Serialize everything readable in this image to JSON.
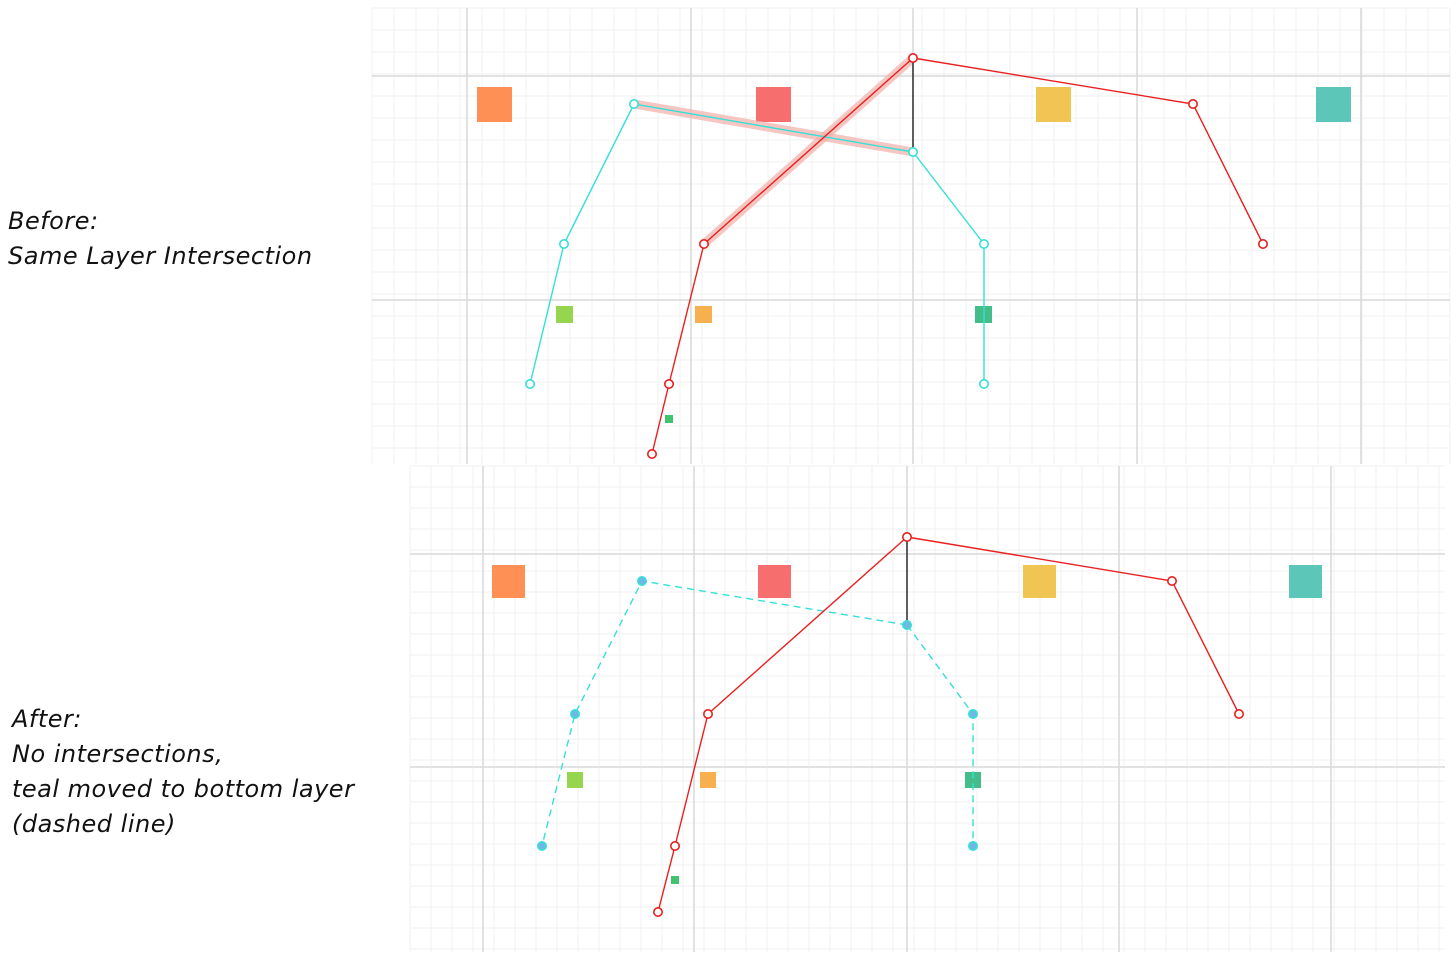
{
  "captions": {
    "before": [
      "Before:",
      "Same Layer Intersection"
    ],
    "after": [
      "After:",
      "No intersections,",
      "teal moved to bottom layer",
      "(dashed line)"
    ]
  },
  "colors": {
    "red_route": "#e8201f",
    "teal_route": "#35e0d6",
    "highlight": "#f3b3ae",
    "connector": "#111111",
    "component_orange": "#fe8f55",
    "component_red": "#f66e6e",
    "component_yellow": "#f0c553",
    "component_teal": "#5cc7b8",
    "pad_lime": "#96d64f",
    "pad_amber": "#f6b04e",
    "pad_green": "#44bd8a",
    "pad_small": "#41c36f",
    "grid_major": "#d9d9d9",
    "grid_minor": "#f1f1f1",
    "via_fill": "#6fb8e6"
  },
  "icons": {
    "route_node": "circle-node",
    "component_pad": "square-pad"
  }
}
